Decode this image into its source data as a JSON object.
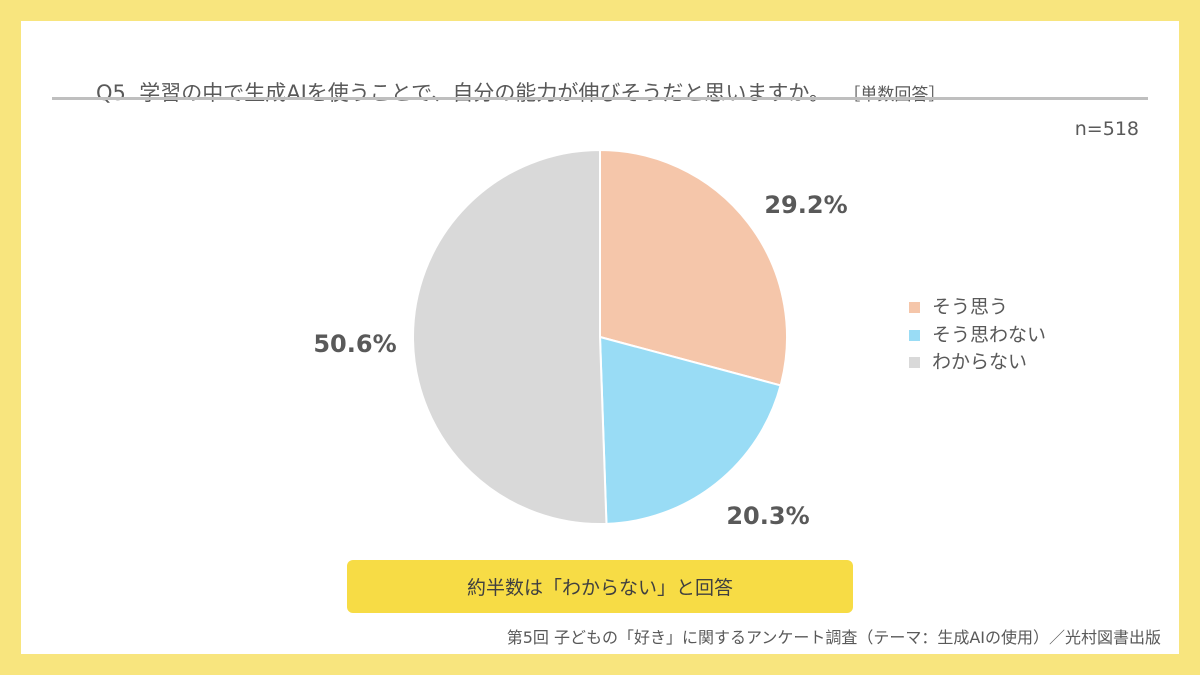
{
  "title": "Q5. 学習の中で生成AIを使うことで、自分の能力が伸びそうだと思いますか。",
  "title_note": "［単数回答］",
  "sample_size": "n=518",
  "callout": "約半数は「わからない」と回答",
  "source": "第5回 子どもの「好き」に関するアンケート調査（テーマ：生成AIの使用）／光村図書出版",
  "colors": {
    "border": "#f8e57e",
    "callout": "#f7dc45"
  },
  "chart_data": {
    "type": "pie",
    "start": "top, clockwise",
    "legend_position": "right",
    "categories": [
      "そう思う",
      "そう思わない",
      "わからない"
    ],
    "values": [
      29.2,
      20.3,
      50.6
    ],
    "labels": [
      "29.2%",
      "20.3%",
      "50.6%"
    ],
    "colors": [
      "#f5c6aa",
      "#99dcf5",
      "#d9d9d9"
    ]
  }
}
